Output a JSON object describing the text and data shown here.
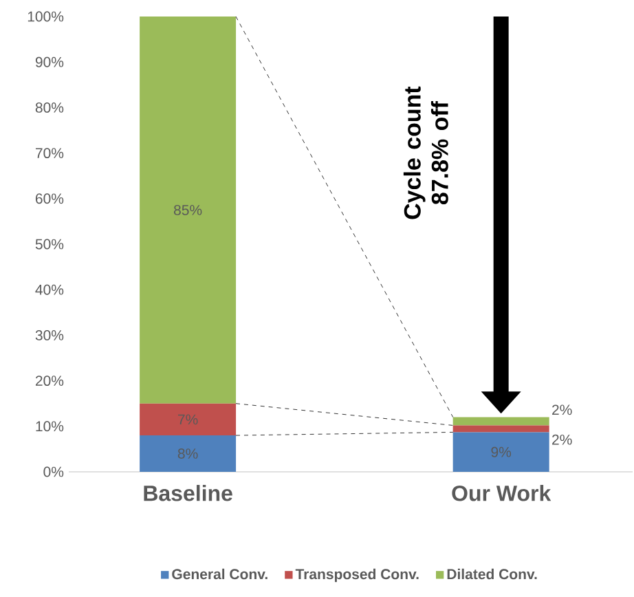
{
  "chart_data": {
    "type": "bar",
    "stacked": true,
    "categories": [
      "Baseline",
      "Our Work"
    ],
    "series": [
      {
        "name": "General Conv.",
        "color": "#4f81bd",
        "values": [
          8,
          8.7
        ],
        "value_labels": [
          "8%",
          "9%"
        ]
      },
      {
        "name": "Transposed Conv.",
        "color": "#c0504d",
        "values": [
          7,
          1.5
        ],
        "value_labels": [
          "7%",
          "2%"
        ]
      },
      {
        "name": "Dilated Conv.",
        "color": "#9bbb59",
        "values": [
          85,
          1.8
        ],
        "value_labels": [
          "85%",
          "2%"
        ]
      }
    ],
    "ylim": [
      0,
      100
    ],
    "yticks": [
      {
        "value": 0,
        "label": "0%"
      },
      {
        "value": 10,
        "label": "10%"
      },
      {
        "value": 20,
        "label": "20%"
      },
      {
        "value": 30,
        "label": "30%"
      },
      {
        "value": 40,
        "label": "40%"
      },
      {
        "value": 50,
        "label": "50%"
      },
      {
        "value": 60,
        "label": "60%"
      },
      {
        "value": 70,
        "label": "70%"
      },
      {
        "value": 80,
        "label": "80%"
      },
      {
        "value": 90,
        "label": "90%"
      },
      {
        "value": 100,
        "label": "100%"
      }
    ],
    "annotations": [
      "Cycle count 87.8% off"
    ],
    "legend": "bottom"
  }
}
